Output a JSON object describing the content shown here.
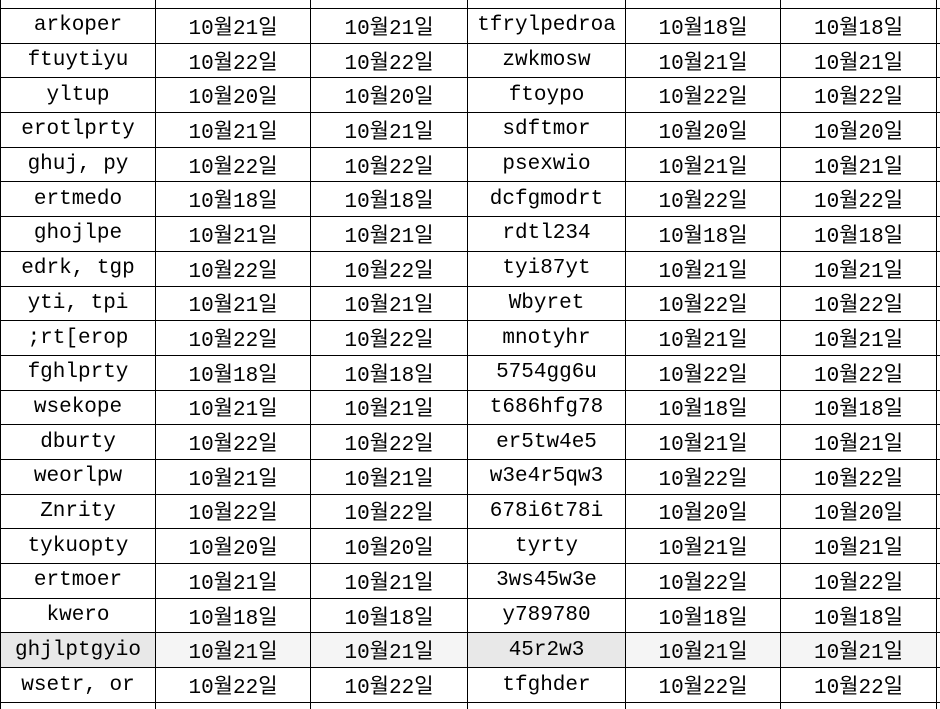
{
  "table": {
    "rows": [
      [
        "arkoper",
        "10월21일",
        "10월21일",
        "tfrylpedroa",
        "10월18일",
        "10월18일"
      ],
      [
        "ftuytiyu",
        "10월22일",
        "10월22일",
        "zwkmosw",
        "10월21일",
        "10월21일"
      ],
      [
        "yltup",
        "10월20일",
        "10월20일",
        "ftoypo",
        "10월22일",
        "10월22일"
      ],
      [
        "erotlprty",
        "10월21일",
        "10월21일",
        "sdftmor",
        "10월20일",
        "10월20일"
      ],
      [
        "ghuj, py",
        "10월22일",
        "10월22일",
        "psexwio",
        "10월21일",
        "10월21일"
      ],
      [
        "ertmedo",
        "10월18일",
        "10월18일",
        "dcfgmodrt",
        "10월22일",
        "10월22일"
      ],
      [
        "ghojlpe",
        "10월21일",
        "10월21일",
        "rdtl234",
        "10월18일",
        "10월18일"
      ],
      [
        "edrk, tgp",
        "10월22일",
        "10월22일",
        "tyi87yt",
        "10월21일",
        "10월21일"
      ],
      [
        "yti, tpi",
        "10월21일",
        "10월21일",
        "Wbyret",
        "10월22일",
        "10월22일"
      ],
      [
        ";rt[erop",
        "10월22일",
        "10월22일",
        "mnotyhr",
        "10월21일",
        "10월21일"
      ],
      [
        "fghlprty",
        "10월18일",
        "10월18일",
        "5754gg6u",
        "10월22일",
        "10월22일"
      ],
      [
        "wsekope",
        "10월21일",
        "10월21일",
        "t686hfg78",
        "10월18일",
        "10월18일"
      ],
      [
        "dburty",
        "10월22일",
        "10월22일",
        "er5tw4e5",
        "10월21일",
        "10월21일"
      ],
      [
        "weorlpw",
        "10월21일",
        "10월21일",
        "w3e4r5qw3",
        "10월22일",
        "10월22일"
      ],
      [
        "Znrity",
        "10월22일",
        "10월22일",
        "678i6t78i",
        "10월20일",
        "10월20일"
      ],
      [
        "tykuopty",
        "10월20일",
        "10월20일",
        "tyrty",
        "10월21일",
        "10월21일"
      ],
      [
        "ertmoer",
        "10월21일",
        "10월21일",
        "3ws45w3e",
        "10월22일",
        "10월22일"
      ],
      [
        "kwero",
        "10월18일",
        "10월18일",
        "y789780",
        "10월18일",
        "10월18일"
      ],
      [
        "ghjlptgyio",
        "10월21일",
        "10월21일",
        "45r2w3",
        "10월21일",
        "10월21일"
      ],
      [
        "wsetr, or",
        "10월22일",
        "10월22일",
        "tfghder",
        "10월22일",
        "10월22일"
      ]
    ],
    "highlight": {
      "row_index": 18,
      "name_cell_color": "#e8e8e8",
      "date_cell_color": "#f5f5f5"
    },
    "colors": {
      "grid_line": "#000000",
      "text": "#000000",
      "background": "#ffffff"
    }
  }
}
